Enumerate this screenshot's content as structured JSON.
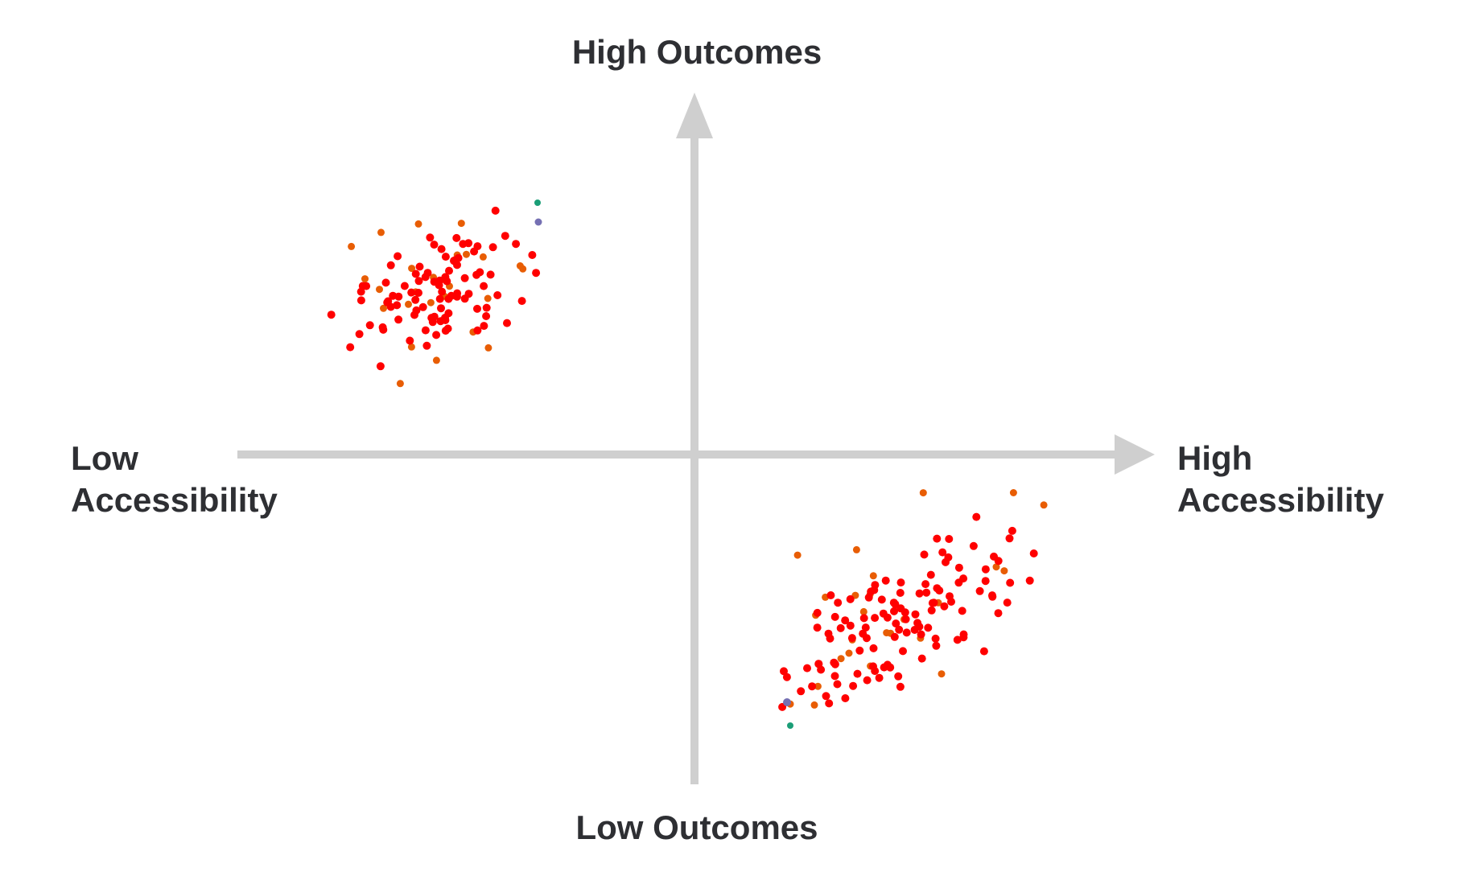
{
  "labels": {
    "top": "High Outcomes",
    "bottom": "Low Outcomes",
    "left_line1": "Low",
    "left_line2": "Accessibility",
    "right_line1": "High",
    "right_line2": "Accessibility"
  },
  "colors": {
    "axis": "#cfcfcf",
    "text": "#2e2f33",
    "dot_red": "#ff0000",
    "dot_orange": "#e85d04",
    "dot_purple": "#7570b3",
    "dot_teal": "#1b9e77"
  }
}
